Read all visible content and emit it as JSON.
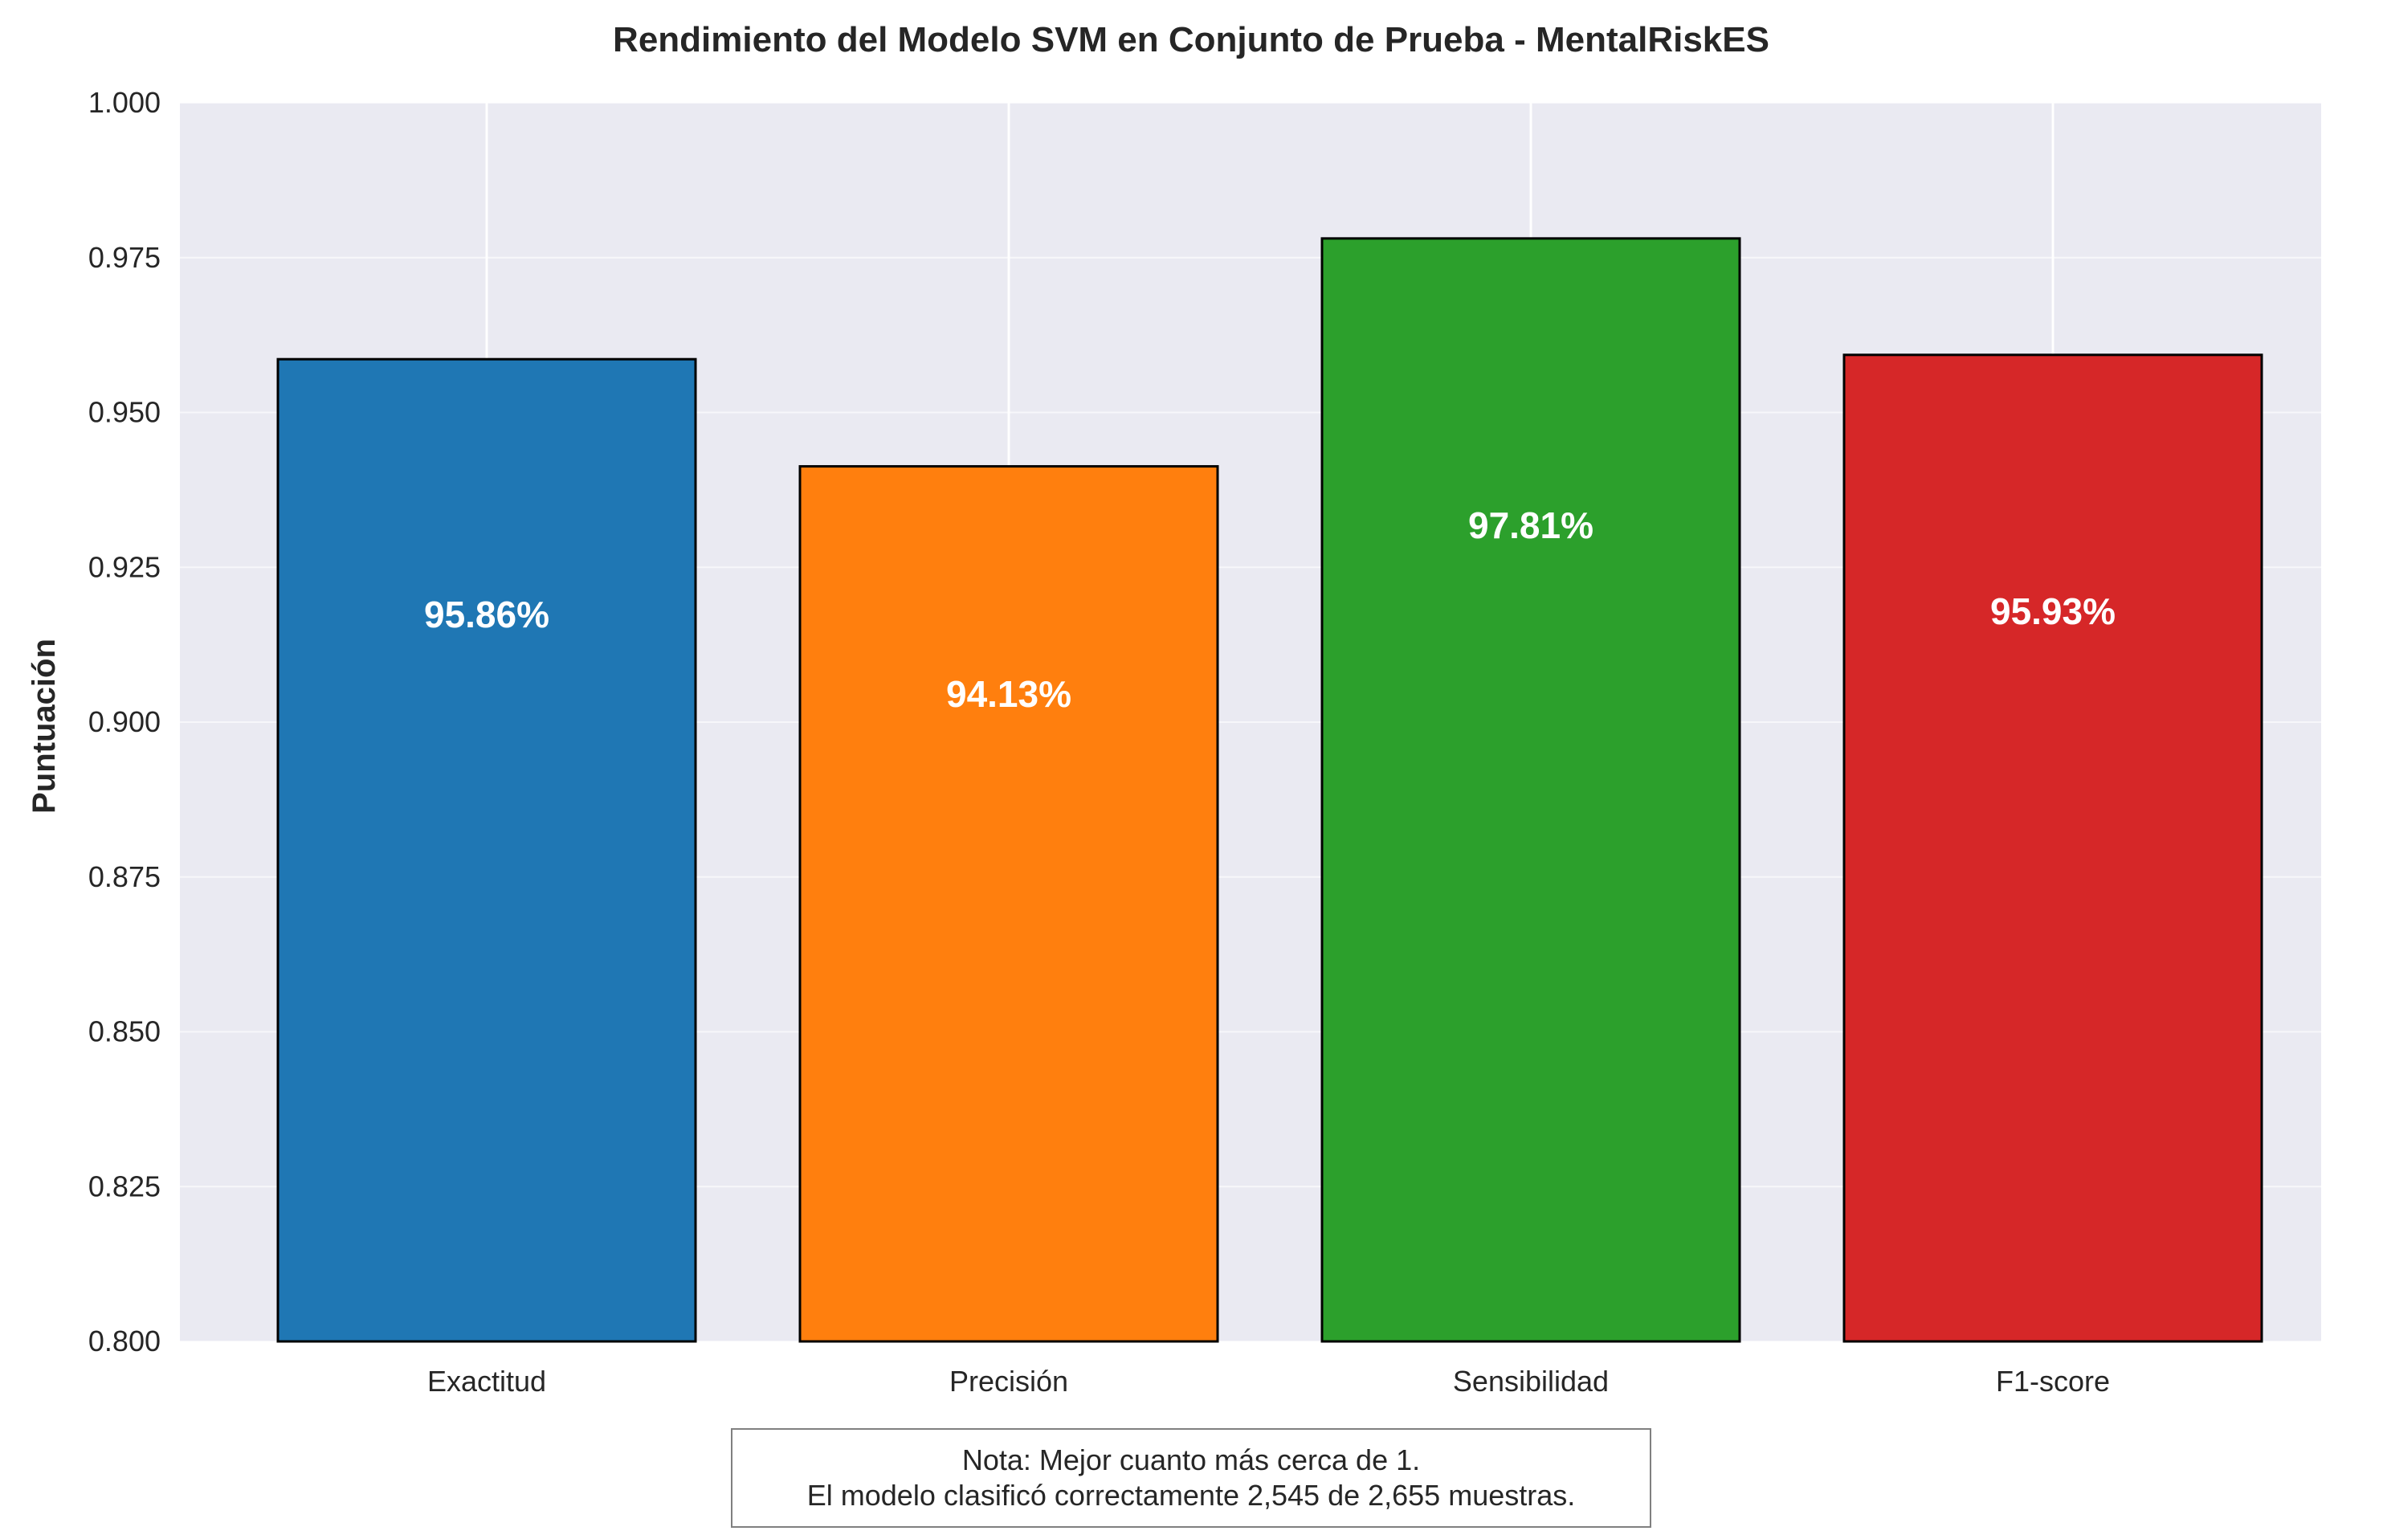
{
  "chart_data": {
    "type": "bar",
    "title": "Rendimiento del Modelo SVM en Conjunto de Prueba - MentalRiskES",
    "xlabel": "",
    "ylabel": "Puntuación",
    "categories": [
      "Exactitud",
      "Precisión",
      "Sensibilidad",
      "F1-score"
    ],
    "values": [
      0.9586,
      0.9413,
      0.9781,
      0.9593
    ],
    "value_labels": [
      "95.86%",
      "94.13%",
      "97.81%",
      "95.93%"
    ],
    "colors": [
      "#1f77b4",
      "#ff7f0e",
      "#2ca02c",
      "#d62728"
    ],
    "ylim": [
      0.8,
      1.0
    ],
    "yticks": [
      0.8,
      0.825,
      0.85,
      0.875,
      0.9,
      0.925,
      0.95,
      0.975,
      1.0
    ],
    "ytick_labels": [
      "0.800",
      "0.825",
      "0.850",
      "0.875",
      "0.900",
      "0.925",
      "0.950",
      "0.975",
      "1.000"
    ],
    "grid": true,
    "legend": "none",
    "background_color": "#eaeaf2"
  },
  "note": {
    "line1": "Nota: Mejor cuanto más cerca de 1.",
    "line2": "El modelo clasificó correctamente 2,545 de 2,655 muestras."
  }
}
